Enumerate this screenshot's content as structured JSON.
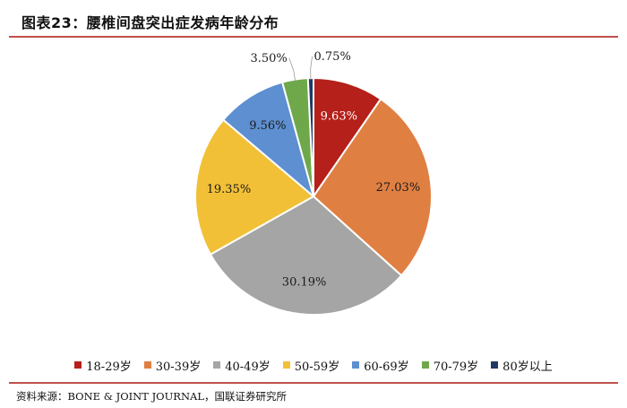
{
  "header": {
    "title": "图表23：腰椎间盘突出症发病年龄分布"
  },
  "footer": {
    "source": "资料来源：BONE & JOINT JOURNAL，国联证券研究所"
  },
  "chart_data": {
    "type": "pie",
    "title": "",
    "legend_position": "bottom",
    "start_angle": "top, clockwise",
    "slices": [
      {
        "label": "18-29岁",
        "value": 9.63,
        "display": "9.63%",
        "color": "#b5201a",
        "label_color": "#ffffff"
      },
      {
        "label": "30-39岁",
        "value": 27.03,
        "display": "27.03%",
        "color": "#e07f42",
        "label_color": "#1a1a1a"
      },
      {
        "label": "40-49岁",
        "value": 30.19,
        "display": "30.19%",
        "color": "#a5a5a5",
        "label_color": "#1a1a1a"
      },
      {
        "label": "50-59岁",
        "value": 19.35,
        "display": "19.35%",
        "color": "#f2c037",
        "label_color": "#1a1a1a"
      },
      {
        "label": "60-69岁",
        "value": 9.56,
        "display": "9.56%",
        "color": "#5d8fd1",
        "label_color": "#1a1a1a"
      },
      {
        "label": "70-79岁",
        "value": 3.5,
        "display": "3.50%",
        "color": "#6ea84b",
        "label_color": "#1a1a1a"
      },
      {
        "label": "80岁以上",
        "value": 0.75,
        "display": "0.75%",
        "color": "#203864",
        "label_color": "#1a1a1a"
      }
    ]
  }
}
